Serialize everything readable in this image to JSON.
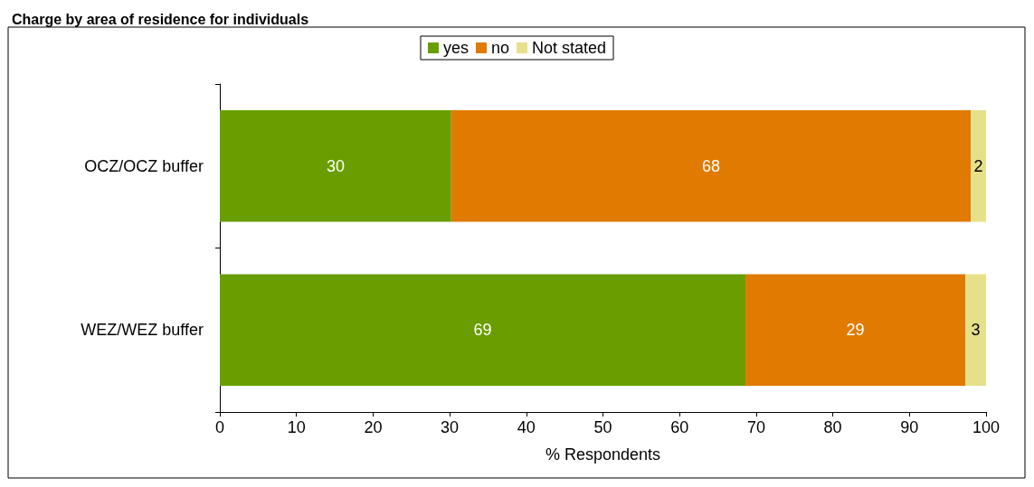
{
  "chart_data": {
    "type": "bar",
    "orientation": "horizontal",
    "stacked": true,
    "title": "Charge by area of residence for individuals",
    "xlabel": "% Respondents",
    "categories": [
      "OCZ/OCZ buffer",
      "WEZ/WEZ buffer"
    ],
    "series": [
      {
        "name": "yes",
        "color": "#6a9e00",
        "values": [
          30.2,
          68.6
        ],
        "value_labels": [
          "30",
          "69"
        ]
      },
      {
        "name": "no",
        "color": "#e07a00",
        "values": [
          67.8,
          28.7
        ],
        "value_labels": [
          "68",
          "29"
        ]
      },
      {
        "name": "Not stated",
        "color": "#e6e08a",
        "values": [
          2.0,
          2.7
        ],
        "value_labels": [
          "2",
          "3"
        ]
      }
    ],
    "xlim": [
      0,
      100
    ],
    "xticks": [
      0,
      10,
      20,
      30,
      40,
      50,
      60,
      70,
      80,
      90,
      100
    ],
    "grid": false,
    "legend": "top"
  }
}
